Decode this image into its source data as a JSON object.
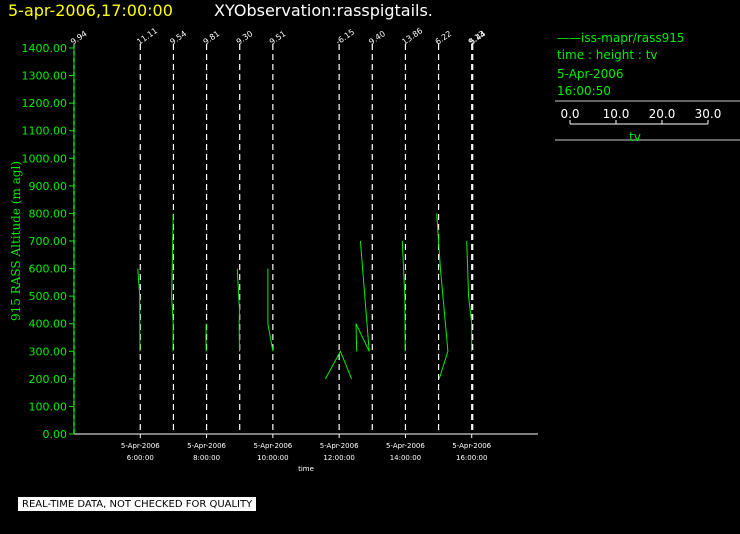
{
  "header": {
    "date_time": "5-apr-2006,17:00:00",
    "observation": "XYObservation:rasspigtails."
  },
  "legend": {
    "series_label": "iss-mapr/rass915",
    "axes_desc": "time : height : tv",
    "date": "5-Apr-2006",
    "time": "16:00:50",
    "scale_ticks": [
      "0.0",
      "10.0",
      "20.0",
      "30.0"
    ],
    "scale_label": "tv"
  },
  "notice": "REAL-TIME DATA, NOT CHECKED FOR QUALITY",
  "colors": {
    "background": "#000000",
    "series": "#00ee00",
    "title_date": "#ffff00",
    "title_obs": "#ffffff"
  },
  "chart_data": {
    "type": "line",
    "xlabel": "time",
    "ylabel": "915 RASS Altitude (m agl)",
    "ylim": [
      0,
      1400
    ],
    "yticks": [
      "0.00",
      "100.00",
      "200.00",
      "300.00",
      "400.00",
      "500.00",
      "600.00",
      "700.00",
      "800.00",
      "900.00",
      "1000.00",
      "1100.00",
      "1200.00",
      "1300.00",
      "1400.00"
    ],
    "xlim": [
      "2006-04-05T04:00",
      "2006-04-05T18:00"
    ],
    "xticks": [
      {
        "t": "2006-04-05T06:00",
        "date": "5-Apr-2006",
        "time": "6:00:00"
      },
      {
        "t": "2006-04-05T08:00",
        "date": "5-Apr-2006",
        "time": "8:00:00"
      },
      {
        "t": "2006-04-05T10:00",
        "date": "5-Apr-2006",
        "time": "10:00:00"
      },
      {
        "t": "2006-04-05T12:00",
        "date": "5-Apr-2006",
        "time": "12:00:00"
      },
      {
        "t": "2006-04-05T14:00",
        "date": "5-Apr-2006",
        "time": "14:00:00"
      },
      {
        "t": "2006-04-05T16:00",
        "date": "5-Apr-2006",
        "time": "16:00:00"
      }
    ],
    "tv_scale": [
      0,
      30
    ],
    "profiles": [
      {
        "t": "2006-04-05T04:00",
        "label": "9.94",
        "points": []
      },
      {
        "t": "2006-04-05T06:00",
        "label": "11.11",
        "points": [
          [
            -2.0,
            600
          ],
          [
            -0.5,
            500
          ],
          [
            -0.3,
            300
          ]
        ]
      },
      {
        "t": "2006-04-05T07:00",
        "label": "9.54",
        "points": [
          [
            -0.2,
            800
          ],
          [
            -1.0,
            600
          ],
          [
            -1.5,
            500
          ],
          [
            -0.2,
            400
          ],
          [
            -0.4,
            300
          ]
        ]
      },
      {
        "t": "2006-04-05T08:00",
        "label": "9.81",
        "points": [
          [
            -0.3,
            400
          ],
          [
            -0.5,
            350
          ],
          [
            -0.3,
            300
          ]
        ]
      },
      {
        "t": "2006-04-05T09:00",
        "label": "9.30",
        "points": [
          [
            -2.0,
            600
          ],
          [
            -0.2,
            450
          ],
          [
            -0.4,
            400
          ],
          [
            -0.2,
            300
          ]
        ]
      },
      {
        "t": "2006-04-05T10:00",
        "label": "9.51",
        "points": [
          [
            -4.0,
            600
          ],
          [
            -4.0,
            400
          ],
          [
            0.0,
            300
          ]
        ]
      },
      {
        "t": "2006-04-05T12:00",
        "label": "-6.15",
        "points": [
          [
            -11.0,
            200
          ],
          [
            1.0,
            300
          ],
          [
            10.0,
            200
          ]
        ]
      },
      {
        "t": "2006-04-05T13:00",
        "label": "9.40",
        "points": [
          [
            -9.5,
            700
          ],
          [
            -2.5,
            300
          ],
          [
            -13.0,
            400
          ],
          [
            -12.5,
            300
          ]
        ]
      },
      {
        "t": "2006-04-05T14:00",
        "label": "13.86",
        "points": [
          [
            -2.5,
            700
          ],
          [
            -0.5,
            500
          ],
          [
            -0.2,
            300
          ]
        ]
      },
      {
        "t": "2006-04-05T15:00",
        "label": "6.22",
        "points": [
          [
            -1.5,
            800
          ],
          [
            1.5,
            600
          ],
          [
            7.5,
            300
          ],
          [
            0.5,
            200
          ]
        ]
      },
      {
        "t": "2006-04-05T16:00",
        "label": "9.13",
        "points": [
          [
            -4.0,
            700
          ],
          [
            -2.5,
            500
          ],
          [
            0.0,
            400
          ],
          [
            0.0,
            300
          ]
        ]
      },
      {
        "t": "2006-04-05T16:00",
        "label": "5.44",
        "points": []
      }
    ]
  }
}
